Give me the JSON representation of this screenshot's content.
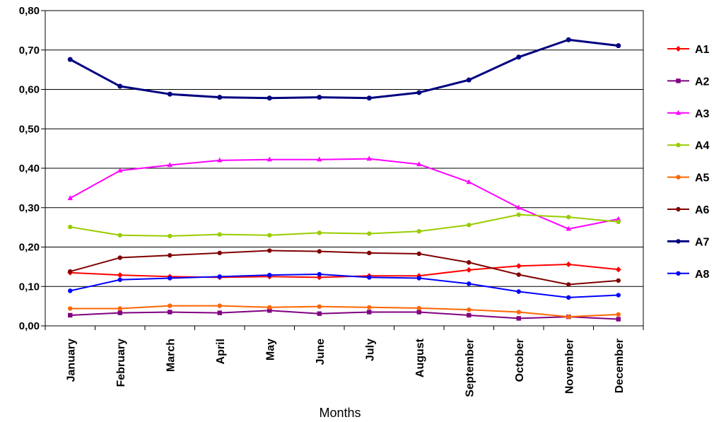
{
  "chart_data": {
    "type": "line",
    "title": "",
    "xlabel": "Months",
    "ylabel": "",
    "categories": [
      "January",
      "February",
      "March",
      "April",
      "May",
      "June",
      "July",
      "August",
      "September",
      "October",
      "November",
      "December"
    ],
    "y_ticks": [
      "0,00",
      "0,10",
      "0,20",
      "0,30",
      "0,40",
      "0,50",
      "0,60",
      "0,70",
      "0,80"
    ],
    "ylim": [
      0,
      0.8
    ],
    "grid": "horizontal",
    "legend_position": "right",
    "series": [
      {
        "name": "A1",
        "color": "#ff0000",
        "marker": "diamond",
        "values": [
          0.135,
          0.129,
          0.125,
          0.123,
          0.125,
          0.123,
          0.127,
          0.127,
          0.142,
          0.152,
          0.156,
          0.143
        ]
      },
      {
        "name": "A2",
        "color": "#800080",
        "marker": "square",
        "values": [
          0.027,
          0.033,
          0.035,
          0.033,
          0.039,
          0.031,
          0.035,
          0.035,
          0.027,
          0.019,
          0.023,
          0.017
        ]
      },
      {
        "name": "A3",
        "color": "#ff00ff",
        "marker": "triangle",
        "values": [
          0.324,
          0.394,
          0.408,
          0.42,
          0.422,
          0.422,
          0.424,
          0.41,
          0.365,
          0.3,
          0.246,
          0.271
        ]
      },
      {
        "name": "A4",
        "color": "#99cc00",
        "marker": "circle",
        "values": [
          0.251,
          0.23,
          0.228,
          0.232,
          0.23,
          0.236,
          0.234,
          0.24,
          0.256,
          0.282,
          0.276,
          0.264
        ]
      },
      {
        "name": "A5",
        "color": "#ff6600",
        "marker": "circle",
        "values": [
          0.044,
          0.044,
          0.051,
          0.051,
          0.047,
          0.049,
          0.047,
          0.045,
          0.041,
          0.035,
          0.023,
          0.029
        ]
      },
      {
        "name": "A6",
        "color": "#800000",
        "marker": "circle",
        "values": [
          0.138,
          0.173,
          0.179,
          0.185,
          0.191,
          0.189,
          0.185,
          0.183,
          0.161,
          0.13,
          0.105,
          0.115
        ]
      },
      {
        "name": "A7",
        "color": "#000080",
        "marker": "circle",
        "values": [
          0.676,
          0.608,
          0.588,
          0.58,
          0.578,
          0.58,
          0.578,
          0.592,
          0.624,
          0.682,
          0.726,
          0.711
        ]
      },
      {
        "name": "A8",
        "color": "#0000ff",
        "marker": "circle",
        "values": [
          0.089,
          0.117,
          0.121,
          0.125,
          0.129,
          0.131,
          0.123,
          0.121,
          0.107,
          0.087,
          0.072,
          0.078
        ]
      }
    ]
  }
}
